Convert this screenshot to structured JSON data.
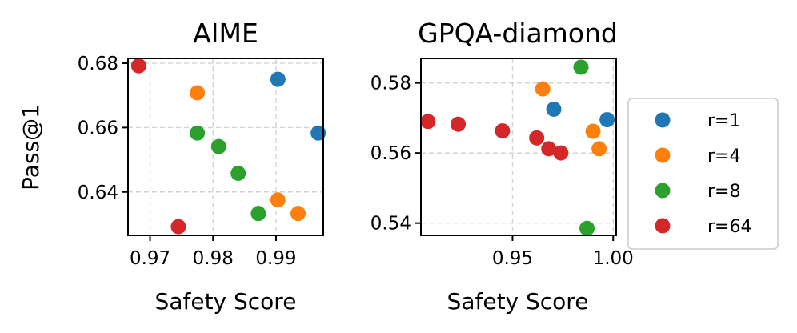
{
  "chart_data": [
    {
      "type": "scatter",
      "title": "AIME",
      "xlabel": "Safety Score",
      "ylabel": "Pass@1",
      "xlim": [
        0.9665,
        0.9975
      ],
      "ylim": [
        0.6265,
        0.6815
      ],
      "xticks": [
        0.97,
        0.98,
        0.99
      ],
      "xtick_labels": [
        "0.97",
        "0.98",
        "0.99"
      ],
      "yticks": [
        0.64,
        0.66,
        0.68
      ],
      "ytick_labels": [
        "0.64",
        "0.66",
        "0.68"
      ],
      "series": [
        {
          "name": "r=1",
          "color": "#1f77b4",
          "x": [
            0.9903,
            0.9967
          ],
          "y": [
            0.675,
            0.6583
          ]
        },
        {
          "name": "r=4",
          "color": "#ff7f0e",
          "x": [
            0.9775,
            0.9903,
            0.9935
          ],
          "y": [
            0.6708,
            0.6375,
            0.6333
          ]
        },
        {
          "name": "r=8",
          "color": "#2ca02c",
          "x": [
            0.9775,
            0.9809,
            0.984,
            0.9872
          ],
          "y": [
            0.6583,
            0.6541,
            0.6458,
            0.6333
          ]
        },
        {
          "name": "r=64",
          "color": "#d62728",
          "x": [
            0.9682,
            0.9745
          ],
          "y": [
            0.6792,
            0.6292
          ]
        }
      ]
    },
    {
      "type": "scatter",
      "title": "GPQA-diamond",
      "xlabel": "Safety Score",
      "ylabel": "",
      "xlim": [
        0.9045,
        1.0015
      ],
      "ylim": [
        0.5365,
        0.587
      ],
      "xticks": [
        0.95,
        1.0
      ],
      "xtick_labels": [
        "0.95",
        "1.00"
      ],
      "yticks": [
        0.54,
        0.56,
        0.58
      ],
      "ytick_labels": [
        "0.54",
        "0.56",
        "0.58"
      ],
      "series": [
        {
          "name": "r=1",
          "color": "#1f77b4",
          "x": [
            0.9705,
            0.997
          ],
          "y": [
            0.5725,
            0.5695
          ]
        },
        {
          "name": "r=4",
          "color": "#ff7f0e",
          "x": [
            0.965,
            0.99,
            0.993
          ],
          "y": [
            0.5783,
            0.5662,
            0.5612
          ]
        },
        {
          "name": "r=8",
          "color": "#2ca02c",
          "x": [
            0.984,
            0.987
          ],
          "y": [
            0.5845,
            0.5385
          ]
        },
        {
          "name": "r=64",
          "color": "#d62728",
          "x": [
            0.908,
            0.923,
            0.945,
            0.962,
            0.968,
            0.974
          ],
          "y": [
            0.569,
            0.5682,
            0.5663,
            0.5643,
            0.5612,
            0.56
          ]
        }
      ]
    }
  ],
  "legend": {
    "placement": "right",
    "entries": [
      {
        "label": "r=1",
        "color": "#1f77b4"
      },
      {
        "label": "r=4",
        "color": "#ff7f0e"
      },
      {
        "label": "r=8",
        "color": "#2ca02c"
      },
      {
        "label": "r=64",
        "color": "#d62728"
      }
    ]
  }
}
